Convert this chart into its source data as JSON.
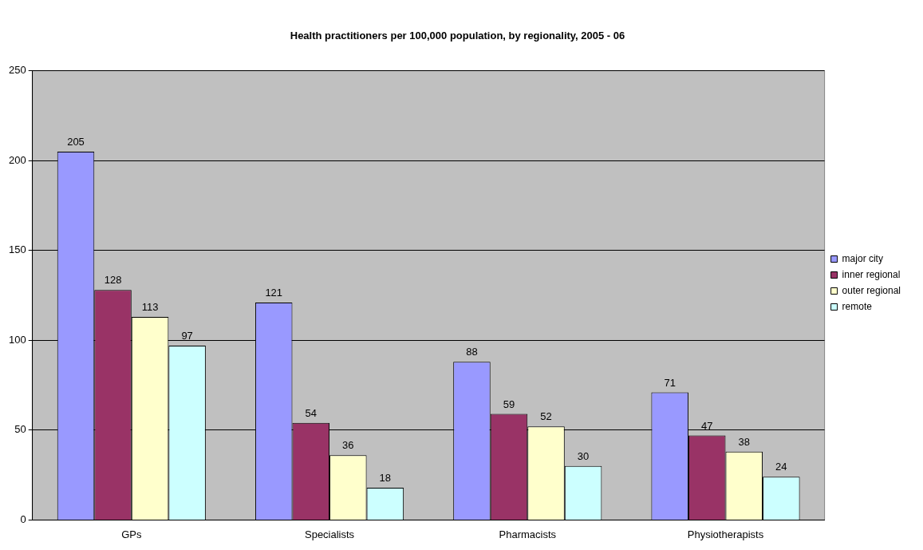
{
  "chart_data": {
    "type": "bar",
    "title": "Health practitioners per 100,000 population, by regionality, 2005 - 06",
    "categories": [
      "GPs",
      "Specialists",
      "Pharmacists",
      "Physiotherapists"
    ],
    "series": [
      {
        "name": "major city",
        "color": "#9999ff",
        "values": [
          205,
          121,
          88,
          71
        ]
      },
      {
        "name": "inner regional",
        "color": "#993366",
        "values": [
          128,
          54,
          59,
          47
        ]
      },
      {
        "name": "outer regional",
        "color": "#ffffcc",
        "values": [
          113,
          36,
          52,
          38
        ]
      },
      {
        "name": "remote",
        "color": "#ccffff",
        "values": [
          97,
          18,
          30,
          24
        ]
      }
    ],
    "ylim": [
      0,
      250
    ],
    "yticks": [
      0,
      50,
      100,
      150,
      200,
      250
    ],
    "grid": "y",
    "legend": "right",
    "data_labels": true
  }
}
